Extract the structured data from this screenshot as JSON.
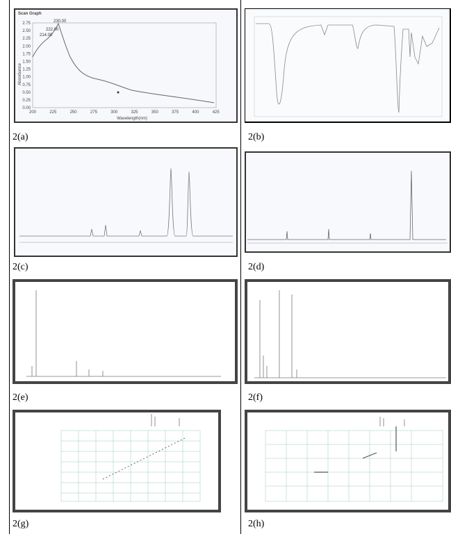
{
  "panels": [
    {
      "caption": "2(a)"
    },
    {
      "caption": "2(b)"
    },
    {
      "caption": "2(c)"
    },
    {
      "caption": "2(d)"
    },
    {
      "caption": "2(e)"
    },
    {
      "caption": "2(f)"
    },
    {
      "caption": "2(g)"
    },
    {
      "caption": "2(h)"
    }
  ],
  "scan_graph": {
    "title": "Scan Graph",
    "y_label": "Absorbance",
    "x_label": "Wavelength(nm)",
    "yticks": [
      "2.75",
      "2.50",
      "2.25",
      "2.00",
      "1.75",
      "1.50",
      "1.25",
      "1.00",
      "0.75",
      "0.50",
      "0.25",
      "0.00"
    ],
    "xticks": [
      "200",
      "225",
      "250",
      "275",
      "300",
      "325",
      "350",
      "375",
      "400",
      "425"
    ],
    "peaks": [
      "230.00",
      "222.00",
      "214.00"
    ]
  }
}
